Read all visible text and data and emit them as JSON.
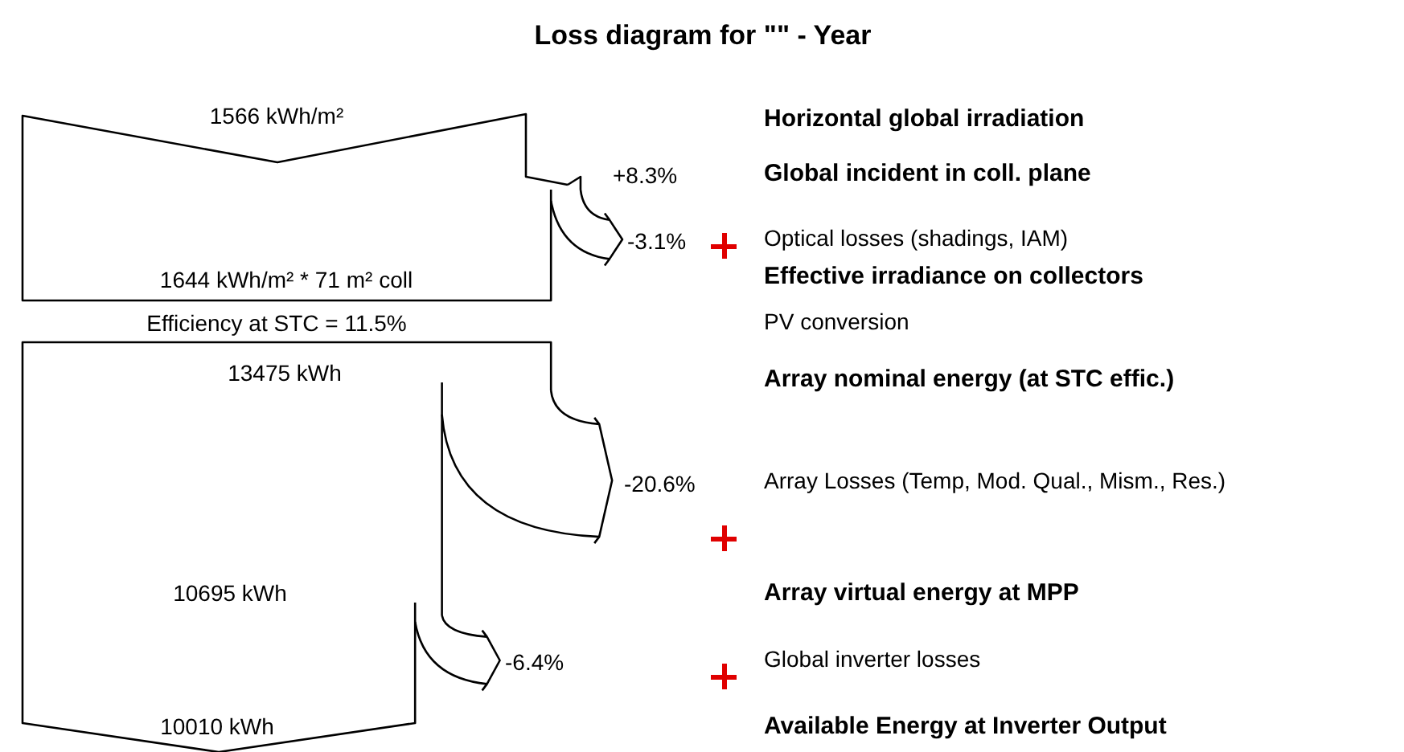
{
  "chart_data": {
    "type": "other",
    "title": "Loss diagram for \"\" - Year",
    "categories": [
      "Horizontal global irradiation",
      "Global incident in coll. plane",
      "Optical losses (shadings, IAM)",
      "Effective irradiance on collectors",
      "PV conversion",
      "Array nominal energy (at STC effic.)",
      "Array Losses (Temp, Mod. Qual., Mism., Res.)",
      "Array virtual energy at MPP",
      "Global inverter losses",
      "Available Energy at Inverter Output"
    ],
    "values": [
      1566,
      8.3,
      -3.1,
      1644,
      null,
      13475,
      -20.6,
      10695,
      -6.4,
      10010
    ],
    "value_labels": [
      "1566 kWh/m²",
      "+8.3%",
      "-3.1%",
      "1644 kWh/m² * 71 m² coll",
      "Efficiency at STC = 11.5%",
      "13475 kWh",
      "-20.6%",
      "10695 kWh",
      "-6.4%",
      "10010 kWh"
    ]
  }
}
